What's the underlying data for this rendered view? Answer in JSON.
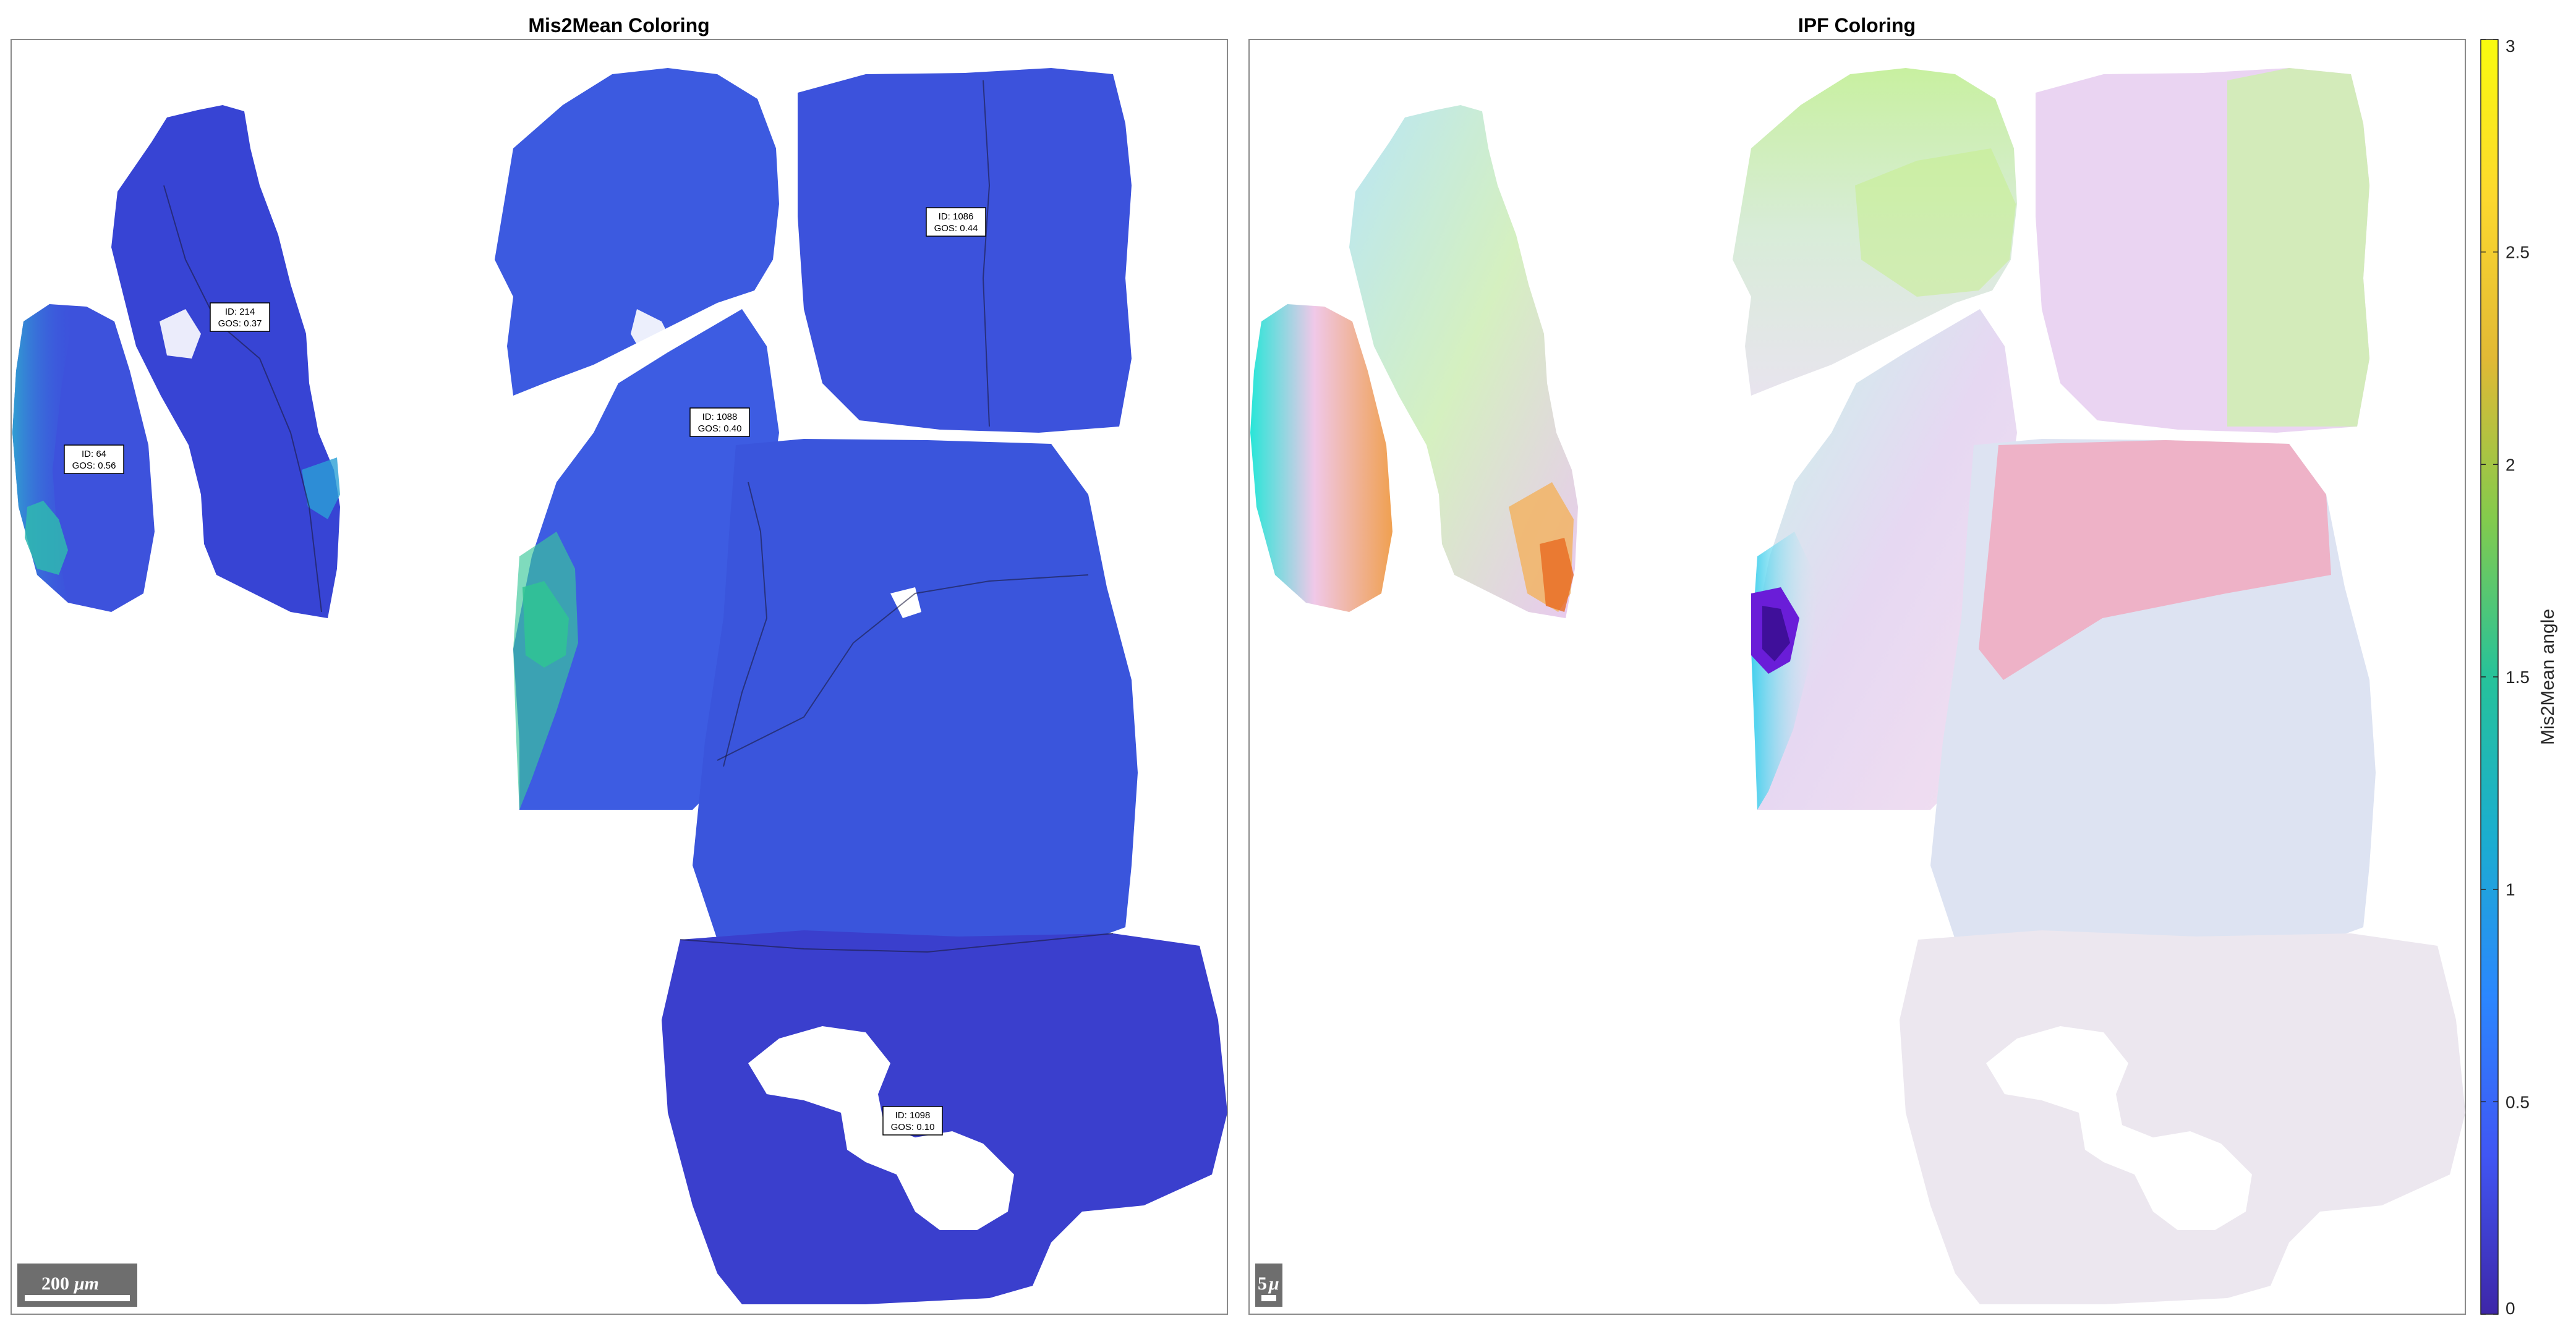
{
  "chart_data": [
    {
      "type": "heatmap",
      "title": "Mis2Mean Coloring",
      "scale_bar": {
        "value": "200",
        "unit": "μm"
      },
      "grain_labels": [
        {
          "id_text": "ID: 214",
          "gos_text": "GOS: 0.37"
        },
        {
          "id_text": "ID: 64",
          "gos_text": "GOS: 0.56"
        },
        {
          "id_text": "ID: 1088",
          "gos_text": "GOS: 0.40"
        },
        {
          "id_text": "ID: 1086",
          "gos_text": "GOS: 0.44"
        },
        {
          "id_text": "ID: 1098",
          "gos_text": "GOS: 0.10"
        }
      ]
    },
    {
      "type": "heatmap",
      "title": "IPF Coloring",
      "scale_bar": {
        "value": "5",
        "unit": "μ"
      }
    }
  ],
  "colorbar": {
    "label": "Mis2Mean angle",
    "range": [
      0,
      3
    ],
    "ticks": [
      "0",
      "0.5",
      "1",
      "1.5",
      "2",
      "2.5",
      "3"
    ],
    "colormap": "parula",
    "colors": [
      "#3e26a8",
      "#4056f4",
      "#2b87fe",
      "#1baecf",
      "#26c29a",
      "#84cb4c",
      "#e1b935",
      "#fcd82e",
      "#f9fb0e"
    ]
  },
  "grain_colors": {
    "mis2mean_low": "#3535c0",
    "mis2mean_base": "#3c5ae0",
    "mis2mean_mid": "#2f9fd4",
    "mis2mean_high": "#3cc7a0"
  }
}
